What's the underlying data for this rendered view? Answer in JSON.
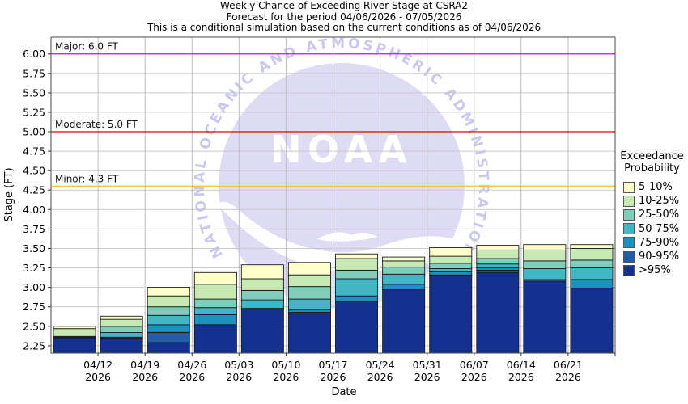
{
  "header": {
    "title_line1": "Weekly Chance of Exceeding River Stage at CSRA2",
    "title_line2": "Forecast for the period 04/06/2026 - 07/05/2026",
    "title_line3": "This is a conditional simulation based on the current conditions as of 04/06/2026"
  },
  "axes": {
    "y_label": "Stage (FT)",
    "x_label": "Date",
    "x_tick_year": "2026"
  },
  "reference_lines": [
    {
      "name": "major",
      "label": "Major: 6.0 FT",
      "value": 6.0,
      "color": "#e619e6"
    },
    {
      "name": "moderate",
      "label": "Moderate: 5.0 FT",
      "value": 5.0,
      "color": "#e60000"
    },
    {
      "name": "minor",
      "label": "Minor: 4.3 FT",
      "value": 4.3,
      "color": "#f7c52e"
    }
  ],
  "legend": {
    "title_line1": "Exceedance",
    "title_line2": "Probability",
    "items": [
      {
        "label": "5-10%",
        "color": "#ffffcc"
      },
      {
        "label": "10-25%",
        "color": "#c7e9b4"
      },
      {
        "label": "25-50%",
        "color": "#7fcdbb"
      },
      {
        "label": "50-75%",
        "color": "#41b6c4"
      },
      {
        "label": "75-90%",
        "color": "#1d91c0"
      },
      {
        "label": "90-95%",
        "color": "#225ea8"
      },
      {
        "label": ">95%",
        "color": "#15318f"
      }
    ]
  },
  "watermark": {
    "arc_text": "NATIONAL OCEANIC AND ATMOSPHERIC ADMINISTRATION",
    "center_text": "NOAA"
  },
  "chart_data": {
    "type": "bar",
    "stacked": true,
    "station": "CSRA2",
    "title": "Weekly Chance of Exceeding River Stage at CSRA2",
    "xlabel": "Date",
    "ylabel": "Stage (FT)",
    "ylim": [
      2.155,
      6.215
    ],
    "baseline": 2.155,
    "grid": true,
    "legend_position": "right",
    "y_ticks": [
      2.25,
      2.5,
      2.75,
      3.0,
      3.25,
      3.5,
      3.75,
      4.0,
      4.25,
      4.5,
      4.75,
      5.0,
      5.25,
      5.5,
      5.75,
      6.0
    ],
    "bands_bottom_to_top": [
      ">95%",
      "90-95%",
      "75-90%",
      "50-75%",
      "25-50%",
      "10-25%",
      "5-10%"
    ],
    "band_colors_bottom_to_top": [
      "#15318f",
      "#225ea8",
      "#1d91c0",
      "#41b6c4",
      "#7fcdbb",
      "#c7e9b4",
      "#ffffcc"
    ],
    "bars": [
      {
        "week": "04/12",
        "cumulative_tops": [
          2.35,
          2.35,
          2.36,
          2.36,
          2.37,
          2.47,
          2.5
        ]
      },
      {
        "week": "04/19",
        "cumulative_tops": [
          2.35,
          2.35,
          2.36,
          2.42,
          2.5,
          2.59,
          2.63
        ]
      },
      {
        "week": "04/26",
        "cumulative_tops": [
          2.29,
          2.42,
          2.52,
          2.64,
          2.75,
          2.89,
          3.0
        ]
      },
      {
        "week": "05/03",
        "cumulative_tops": [
          2.52,
          2.52,
          2.65,
          2.74,
          2.85,
          3.04,
          3.19
        ]
      },
      {
        "week": "05/10",
        "cumulative_tops": [
          2.72,
          2.72,
          2.73,
          2.84,
          2.96,
          3.11,
          3.29
        ]
      },
      {
        "week": "05/17",
        "cumulative_tops": [
          2.68,
          2.68,
          2.71,
          2.85,
          3.01,
          3.16,
          3.32
        ]
      },
      {
        "week": "05/24",
        "cumulative_tops": [
          2.82,
          2.82,
          2.89,
          3.11,
          3.22,
          3.37,
          3.43
        ]
      },
      {
        "week": "05/31",
        "cumulative_tops": [
          2.97,
          2.97,
          3.04,
          3.17,
          3.26,
          3.34,
          3.39
        ]
      },
      {
        "week": "06/07",
        "cumulative_tops": [
          3.15,
          3.16,
          3.2,
          3.24,
          3.31,
          3.4,
          3.51
        ]
      },
      {
        "week": "06/14",
        "cumulative_tops": [
          3.19,
          3.22,
          3.25,
          3.3,
          3.37,
          3.48,
          3.54
        ]
      },
      {
        "week": "06/21",
        "cumulative_tops": [
          3.08,
          3.08,
          3.1,
          3.24,
          3.34,
          3.48,
          3.55
        ]
      },
      {
        "week": "",
        "cumulative_tops": [
          2.99,
          2.99,
          3.1,
          3.25,
          3.35,
          3.5,
          3.55
        ]
      }
    ]
  }
}
